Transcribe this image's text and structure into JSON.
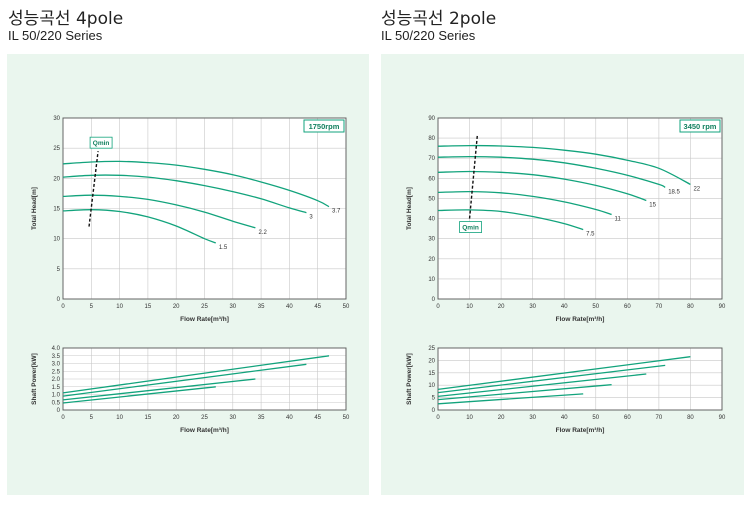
{
  "panels": [
    {
      "heading": "성능곡선 4pole",
      "series_name": "IL 50/220 Series"
    },
    {
      "heading": "성능곡선 2pole",
      "series_name": "IL 50/220 Series"
    }
  ],
  "chart_data": [
    {
      "type": "line",
      "id": "4pole-head",
      "badge": "1750rpm",
      "qmin_label": "Qmin",
      "xlabel": "Flow Rate[m³/h]",
      "ylabel": "Total Head[m]",
      "xlim": [
        0,
        50
      ],
      "ylim": [
        0,
        30
      ],
      "xticks": [
        0,
        5,
        10,
        15,
        20,
        25,
        30,
        35,
        40,
        45,
        50
      ],
      "yticks": [
        0,
        5,
        10,
        15,
        20,
        25,
        30
      ],
      "grid": true,
      "qmin_line": [
        [
          4.6,
          12
        ],
        [
          6.2,
          24.5
        ]
      ],
      "series": [
        {
          "name": "1.5",
          "x": [
            0,
            5,
            10,
            15,
            20,
            25,
            27
          ],
          "y": [
            14.6,
            14.8,
            14.5,
            13.6,
            12.1,
            10,
            9.3
          ]
        },
        {
          "name": "2.2",
          "x": [
            0,
            5,
            10,
            15,
            20,
            25,
            30,
            34
          ],
          "y": [
            17,
            17.2,
            17,
            16.5,
            15.6,
            14.4,
            12.9,
            11.8
          ]
        },
        {
          "name": "3",
          "x": [
            0,
            5,
            10,
            15,
            20,
            25,
            30,
            35,
            40,
            43
          ],
          "y": [
            20.2,
            20.5,
            20.5,
            20.2,
            19.6,
            18.8,
            17.8,
            16.6,
            15.1,
            14.3
          ]
        },
        {
          "name": "3.7",
          "x": [
            0,
            5,
            10,
            15,
            20,
            25,
            30,
            35,
            40,
            45,
            47
          ],
          "y": [
            22.4,
            22.7,
            22.8,
            22.6,
            22.2,
            21.5,
            20.6,
            19.4,
            18,
            16.3,
            15.3
          ]
        }
      ]
    },
    {
      "type": "line",
      "id": "4pole-power",
      "xlabel": "Flow Rate[m³/h]",
      "ylabel": "Shaft Power[kW]",
      "xlim": [
        0,
        50
      ],
      "ylim": [
        0,
        4
      ],
      "xticks": [
        0,
        5,
        10,
        15,
        20,
        25,
        30,
        35,
        40,
        45,
        50
      ],
      "yticks": [
        0,
        0.5,
        1,
        1.5,
        2,
        2.5,
        3,
        3.5,
        4
      ],
      "ytick_labels": [
        "0",
        "0.5",
        "1.0",
        "1.5",
        "2.0",
        "2.5",
        "3.0",
        "3.5",
        "4.0"
      ],
      "grid": true,
      "series": [
        {
          "name": "1.5",
          "x": [
            0,
            27
          ],
          "y": [
            0.45,
            1.5
          ]
        },
        {
          "name": "2.2",
          "x": [
            0,
            34
          ],
          "y": [
            0.65,
            2.0
          ]
        },
        {
          "name": "3",
          "x": [
            0,
            43
          ],
          "y": [
            0.9,
            2.95
          ]
        },
        {
          "name": "3.7",
          "x": [
            0,
            47
          ],
          "y": [
            1.1,
            3.5
          ]
        }
      ]
    },
    {
      "type": "line",
      "id": "2pole-head",
      "badge": "3450 rpm",
      "qmin_label": "Qmin",
      "xlabel": "Flow Rate[m³/h]",
      "ylabel": "Total Head[m]",
      "xlim": [
        0,
        90
      ],
      "ylim": [
        0,
        90
      ],
      "xticks": [
        0,
        10,
        20,
        30,
        40,
        50,
        60,
        70,
        80,
        90
      ],
      "yticks": [
        0,
        10,
        20,
        30,
        40,
        50,
        60,
        70,
        80,
        90
      ],
      "grid": true,
      "qmin_line": [
        [
          10,
          40
        ],
        [
          12.5,
          82
        ]
      ],
      "series": [
        {
          "name": "7.5",
          "x": [
            0,
            10,
            20,
            30,
            40,
            46
          ],
          "y": [
            44,
            44.3,
            43.5,
            41,
            37.5,
            34.5
          ]
        },
        {
          "name": "11",
          "x": [
            0,
            10,
            20,
            30,
            40,
            50,
            55
          ],
          "y": [
            53,
            53.4,
            52.8,
            51,
            48.3,
            44.5,
            42
          ]
        },
        {
          "name": "15",
          "x": [
            0,
            10,
            20,
            30,
            40,
            50,
            60,
            66
          ],
          "y": [
            63,
            63.4,
            63,
            61.8,
            59.6,
            56.5,
            52.3,
            49
          ]
        },
        {
          "name": "18.5",
          "x": [
            0,
            10,
            20,
            30,
            40,
            50,
            60,
            70,
            72
          ],
          "y": [
            70.5,
            70.8,
            70.5,
            69.5,
            67.7,
            65,
            61.5,
            57,
            55.5
          ]
        },
        {
          "name": "22",
          "x": [
            0,
            10,
            20,
            30,
            40,
            50,
            60,
            70,
            80
          ],
          "y": [
            76,
            76.3,
            76.1,
            75.4,
            74,
            72,
            69,
            65,
            57
          ]
        }
      ]
    },
    {
      "type": "line",
      "id": "2pole-power",
      "xlabel": "Flow Rate[m³/h]",
      "ylabel": "Shaft Power[kW]",
      "xlim": [
        0,
        90
      ],
      "ylim": [
        0,
        25
      ],
      "xticks": [
        0,
        10,
        20,
        30,
        40,
        50,
        60,
        70,
        80,
        90
      ],
      "yticks": [
        0,
        5,
        10,
        15,
        20,
        25
      ],
      "grid": true,
      "series": [
        {
          "name": "7.5",
          "x": [
            0,
            46
          ],
          "y": [
            2.5,
            6.5
          ]
        },
        {
          "name": "11",
          "x": [
            0,
            55
          ],
          "y": [
            4.2,
            10.2
          ]
        },
        {
          "name": "15",
          "x": [
            0,
            66
          ],
          "y": [
            5.5,
            14.5
          ]
        },
        {
          "name": "18.5",
          "x": [
            0,
            72
          ],
          "y": [
            7.0,
            18.0
          ]
        },
        {
          "name": "22",
          "x": [
            0,
            80
          ],
          "y": [
            8.3,
            21.5
          ]
        }
      ]
    }
  ]
}
